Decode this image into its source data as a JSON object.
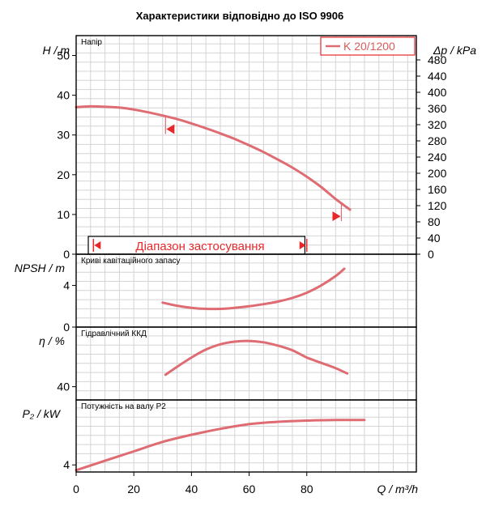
{
  "title": "Характеристики відповідно до ISO 9906",
  "colors": {
    "curve": "#de6c72",
    "range": "#e8272b",
    "grid": "#d4d4d4"
  },
  "chart_data": [
    {
      "type": "line",
      "panel": "head",
      "label": "Напір",
      "ylabel": "H / m",
      "y2label": "Δp / kPa",
      "ylim": [
        0,
        55
      ],
      "y2lim": [
        0,
        540
      ],
      "yticks": [
        0,
        10,
        20,
        30,
        40,
        50
      ],
      "y2ticks": [
        0,
        40,
        80,
        120,
        160,
        200,
        240,
        280,
        320,
        360,
        400,
        440,
        480
      ],
      "legend": "K 20/1200",
      "legend_position": "top-right",
      "series": [
        {
          "name": "K 20/1200",
          "x": [
            0,
            5,
            10,
            15,
            20,
            25,
            30,
            35,
            40,
            45,
            50,
            55,
            60,
            65,
            70,
            75,
            80,
            85,
            90,
            95
          ],
          "y": [
            37.0,
            37.2,
            37.1,
            36.9,
            36.4,
            35.7,
            34.9,
            34.0,
            32.9,
            31.7,
            30.4,
            29.0,
            27.4,
            25.7,
            23.8,
            21.8,
            19.5,
            16.9,
            13.9,
            11.2
          ]
        }
      ],
      "range_markers": [
        31,
        92
      ],
      "application_range": {
        "label": "Діапазон застосування",
        "x": [
          6,
          80
        ]
      }
    },
    {
      "type": "line",
      "panel": "npsh",
      "label": "Криві кавітаційного запасу",
      "ylabel": "NPSH / m",
      "ylim": [
        0,
        7
      ],
      "yticks": [
        0,
        4
      ],
      "series": [
        {
          "x": [
            30,
            35,
            40,
            45,
            50,
            55,
            60,
            65,
            70,
            75,
            80,
            85,
            90,
            93
          ],
          "y": [
            2.35,
            2.05,
            1.85,
            1.75,
            1.75,
            1.85,
            2.0,
            2.2,
            2.45,
            2.8,
            3.3,
            4.0,
            4.9,
            5.6
          ]
        }
      ]
    },
    {
      "type": "line",
      "panel": "efficiency",
      "label": "Гідравлічний ККД",
      "ylabel": "η / %",
      "ylim": [
        30,
        85
      ],
      "yticks": [
        40
      ],
      "series": [
        {
          "x": [
            31,
            35,
            40,
            45,
            50,
            55,
            60,
            65,
            70,
            75,
            80,
            85,
            90,
            94
          ],
          "y": [
            49,
            55,
            62,
            68,
            72,
            74,
            74.5,
            73.5,
            71,
            67.5,
            62,
            58,
            54,
            50
          ]
        }
      ]
    },
    {
      "type": "line",
      "panel": "power",
      "label": "Потужність на валу P2",
      "ylabel": "P₂ / kW",
      "ylim": [
        3.4,
        9.5
      ],
      "yticks": [
        4
      ],
      "xlabel": "Q / m³/h",
      "xticks": [
        0,
        20,
        40,
        60,
        80
      ],
      "xlim": [
        0,
        118
      ],
      "series": [
        {
          "x": [
            0,
            10,
            20,
            30,
            40,
            50,
            60,
            70,
            80,
            90,
            100
          ],
          "y": [
            3.55,
            4.35,
            5.15,
            5.95,
            6.55,
            7.05,
            7.45,
            7.65,
            7.75,
            7.8,
            7.8
          ]
        }
      ]
    }
  ]
}
